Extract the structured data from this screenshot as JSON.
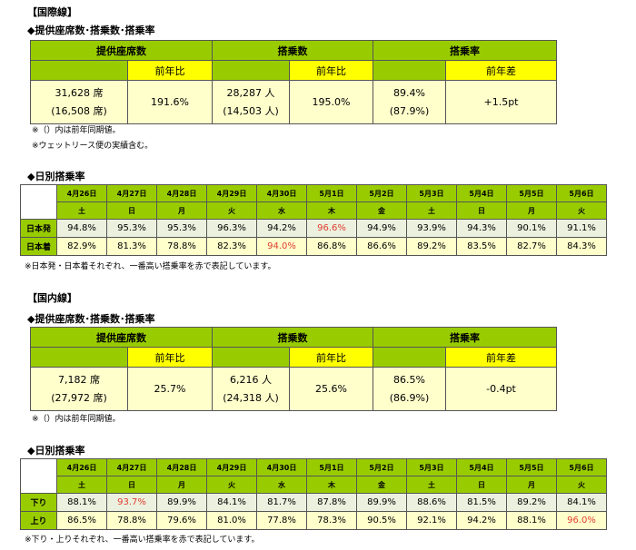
{
  "international": {
    "heading": "【国際線】",
    "summary_title": "◆提供座席数･搭乗数･搭乗率",
    "groups": [
      {
        "label": "提供座席数",
        "sub_label": "前年比",
        "value": "31,628 席",
        "previous": "(16,508 席)",
        "change": "191.6%"
      },
      {
        "label": "搭乗数",
        "sub_label": "前年比",
        "value": "28,287 人",
        "previous": "(14,503 人)",
        "change": "195.0%"
      },
      {
        "label": "搭乗率",
        "sub_label": "前年差",
        "value": "89.4%",
        "previous": "(87.9%)",
        "change": "+1.5pt"
      }
    ],
    "notes": [
      "※（）内は前年同期値。",
      "※ウェットリース便の実績含む。"
    ],
    "daily": {
      "title": "◆日別搭乗率",
      "dates": [
        "4月26日",
        "4月27日",
        "4月28日",
        "4月29日",
        "4月30日",
        "5月1日",
        "5月2日",
        "5月3日",
        "5月4日",
        "5月5日",
        "5月6日"
      ],
      "weekdays": [
        "土",
        "日",
        "月",
        "火",
        "水",
        "木",
        "金",
        "土",
        "日",
        "月",
        "火"
      ],
      "rows": [
        {
          "label": "日本発",
          "values": [
            "94.8%",
            "95.3%",
            "95.3%",
            "96.3%",
            "94.2%",
            "96.6%",
            "94.9%",
            "93.9%",
            "94.3%",
            "90.1%",
            "91.1%"
          ],
          "highlight": 5
        },
        {
          "label": "日本着",
          "values": [
            "82.9%",
            "81.3%",
            "78.8%",
            "82.3%",
            "94.0%",
            "86.8%",
            "86.6%",
            "89.2%",
            "83.5%",
            "82.7%",
            "84.3%"
          ],
          "highlight": 4
        }
      ],
      "note": "※日本発・日本着それぞれ、一番高い搭乗率を赤で表記しています。"
    }
  },
  "domestic": {
    "heading": "【国内線】",
    "summary_title": "◆提供座席数･搭乗数･搭乗率",
    "groups": [
      {
        "label": "提供座席数",
        "sub_label": "前年比",
        "value": "7,182 席",
        "previous": "(27,972 席)",
        "change": "25.7%"
      },
      {
        "label": "搭乗数",
        "sub_label": "前年比",
        "value": "6,216 人",
        "previous": "(24,318 人)",
        "change": "25.6%"
      },
      {
        "label": "搭乗率",
        "sub_label": "前年差",
        "value": "86.5%",
        "previous": "(86.9%)",
        "change": "-0.4pt"
      }
    ],
    "notes": [
      "※（）内は前年同期値。"
    ],
    "daily": {
      "title": "◆日別搭乗率",
      "dates": [
        "4月26日",
        "4月27日",
        "4月28日",
        "4月29日",
        "4月30日",
        "5月1日",
        "5月2日",
        "5月3日",
        "5月4日",
        "5月5日",
        "5月6日"
      ],
      "weekdays": [
        "土",
        "日",
        "月",
        "火",
        "水",
        "木",
        "金",
        "土",
        "日",
        "月",
        "火"
      ],
      "rows": [
        {
          "label": "下り",
          "values": [
            "88.1%",
            "93.7%",
            "89.9%",
            "84.1%",
            "81.7%",
            "87.8%",
            "89.9%",
            "88.6%",
            "81.5%",
            "89.2%",
            "84.1%"
          ],
          "highlight": 1
        },
        {
          "label": "上り",
          "values": [
            "86.5%",
            "78.8%",
            "79.6%",
            "81.0%",
            "77.8%",
            "78.3%",
            "90.5%",
            "92.1%",
            "94.2%",
            "88.1%",
            "96.0%"
          ],
          "highlight": 10
        }
      ],
      "note": "※下り・上りそれぞれ、一番高い搭乗率を赤で表記しています。"
    }
  }
}
